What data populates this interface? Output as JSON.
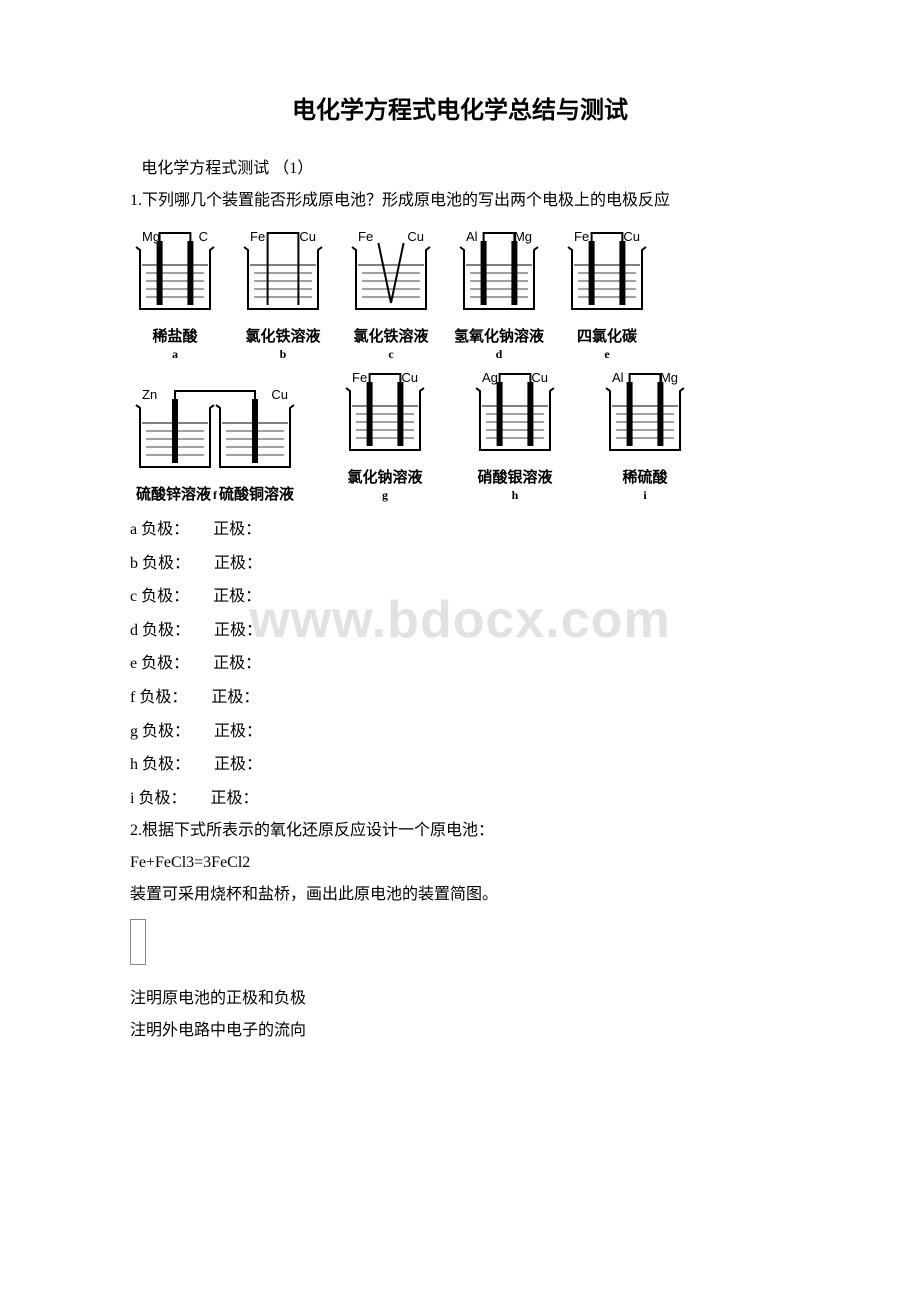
{
  "title": "电化学方程式电化学总结与测试",
  "intro1": "电化学方程式测试 （1）",
  "intro2": "1.下列哪几个装置能否形成原电池？形成原电池的写出两个电极上的电极反应",
  "diagrams": {
    "stroke": "#000000",
    "hatch": "#000000",
    "row1": [
      {
        "leftTop": "Mg",
        "rightTop": "C",
        "leftShape": "rect",
        "rightShape": "rect",
        "connectTop": true,
        "captionMain": "稀盐酸",
        "captionSub": "a",
        "beaker": "std"
      },
      {
        "leftTop": "Fe",
        "rightTop": "Cu",
        "leftShape": "line",
        "rightShape": "line",
        "connectTop": true,
        "captionMain": "氯化铁溶液",
        "captionSub": "b",
        "beaker": "std"
      },
      {
        "leftTop": "Fe",
        "rightTop": "Cu",
        "leftShape": "line",
        "rightShape": "line",
        "connectTop": false,
        "captionMain": "氯化铁溶液",
        "captionSub": "c",
        "beaker": "std",
        "touching": true
      },
      {
        "leftTop": "Al",
        "rightTop": "Mg",
        "leftShape": "rect",
        "rightShape": "rect",
        "connectTop": true,
        "captionMain": "氢氧化钠溶液",
        "captionSub": "d",
        "beaker": "std"
      },
      {
        "leftTop": "Fe",
        "rightTop": "Cu",
        "leftShape": "rect",
        "rightShape": "rect",
        "connectTop": true,
        "captionMain": "四氯化碳",
        "captionSub": "e",
        "beaker": "std"
      }
    ],
    "row2": [
      {
        "leftTop": "Zn",
        "rightTop": "Cu",
        "leftShape": "rect",
        "rightShape": "rect",
        "connectTop": true,
        "captionMain": "硫酸锌溶液",
        "captionMid": "f",
        "captionMain2": "硫酸铜溶液",
        "beaker": "double"
      },
      {
        "leftTop": "Fe",
        "rightTop": "Cu",
        "leftShape": "rect",
        "rightShape": "rect",
        "connectTop": true,
        "captionMain": "氯化钠溶液",
        "captionSub": "g",
        "beaker": "std"
      },
      {
        "leftTop": "Ag",
        "rightTop": "Cu",
        "leftShape": "rect",
        "rightShape": "rect",
        "connectTop": true,
        "captionMain": "硝酸银溶液",
        "captionSub": "h",
        "beaker": "std"
      },
      {
        "leftTop": "Al",
        "rightTop": "Mg",
        "leftShape": "rect",
        "rightShape": "rect",
        "connectTop": true,
        "captionMain": "稀硫酸",
        "captionSub": "i",
        "beaker": "std"
      }
    ]
  },
  "answers": [
    {
      "label": "a 负极：",
      "right": "正极："
    },
    {
      "label": "b 负极：",
      "right": "正极："
    },
    {
      "label": "c 负极：",
      "right": "正极："
    },
    {
      "label": "d 负极：",
      "right": "正极："
    },
    {
      "label": "e 负极：",
      "right": "正极："
    },
    {
      "label": "f 负极：",
      "right": "正极："
    },
    {
      "label": "g 负极：",
      "right": "正极："
    },
    {
      "label": "h 负极：",
      "right": "正极："
    },
    {
      "label": "i 负极：",
      "right": "正极："
    }
  ],
  "q2a": "2.根据下式所表示的氧化还原反应设计一个原电池：",
  "q2b": "Fe+FeCl3=3FeCl2",
  "q2c": "装置可采用烧杯和盐桥，画出此原电池的装置简图。",
  "q2d": "注明原电池的正极和负极",
  "q2e": "注明外电路中电子的流向",
  "watermark": "www.bdocx.com"
}
